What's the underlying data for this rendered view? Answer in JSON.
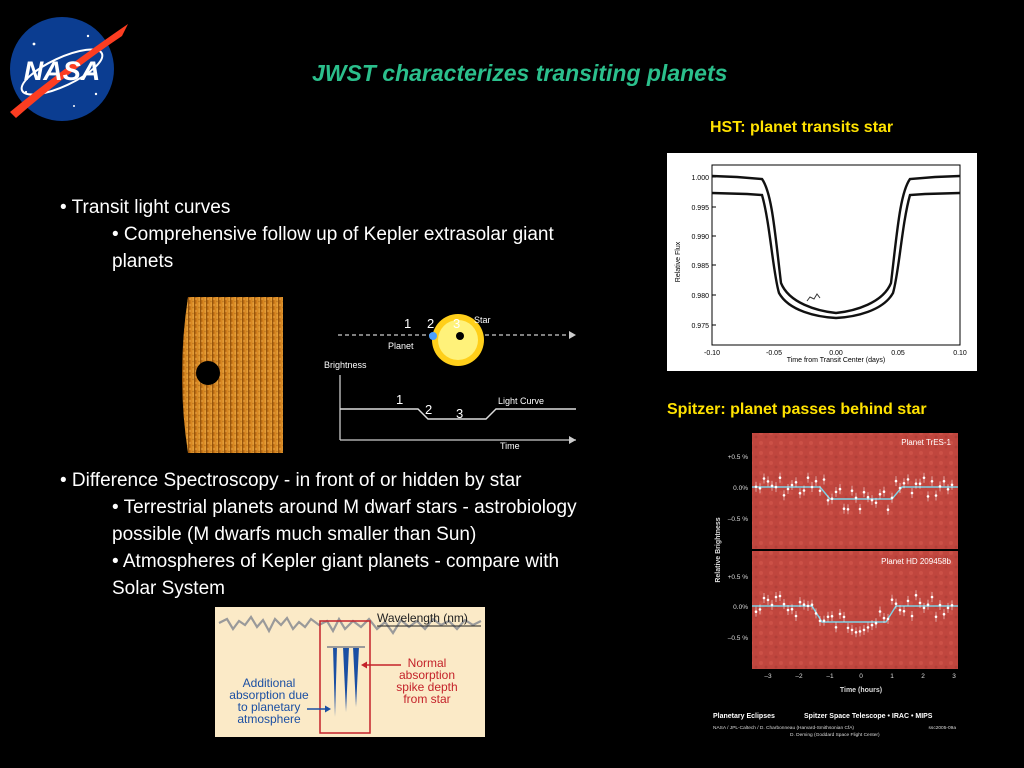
{
  "slide": {
    "title": "JWST characterizes transiting planets",
    "logo_text": "NASA",
    "bullets1": {
      "main": "• Transit light curves",
      "sub1": "• Comprehensive follow up of Kepler extrasolar giant",
      "sub1_cont": "planets"
    },
    "bullets2": {
      "main": "• Difference Spectroscopy - in front of or hidden by star",
      "sub1": "• Terrestrial planets around  M dwarf stars - astrobiology",
      "sub1_cont": "possible (M dwarfs much smaller than Sun)",
      "sub2": "• Atmospheres of Kepler giant planets - compare with",
      "sub2_cont": "Solar System"
    }
  },
  "hst": {
    "caption": "HST: planet transits star",
    "ylabel": "Relative Flux",
    "xlabel": "Time from Transit Center (days)",
    "yticks": [
      "1.000",
      "0.995",
      "0.990",
      "0.985",
      "0.980",
      "0.975"
    ],
    "xticks": [
      "-0.10",
      "-0.05",
      "0.00",
      "0.05",
      "0.10"
    ]
  },
  "transit_diagram": {
    "star_label": "Star",
    "planet_label": "Planet",
    "brightness_label": "Brightness",
    "time_label": "Time",
    "light_curve_label": "Light Curve",
    "pos1": "1",
    "pos2": "2",
    "pos3": "3"
  },
  "spitzer": {
    "caption": "Spitzer: planet passes behind star",
    "panel1_title": "Planet TrES-1",
    "panel2_title": "Planet HD 209458b",
    "ylabel": "Relative Brightness",
    "xlabel": "Time (hours)",
    "yticks": [
      "+0.5 %",
      "0.0%",
      "–0.5 %"
    ],
    "xticks": [
      "–3",
      "–2",
      "–1",
      "0",
      "1",
      "2",
      "3"
    ],
    "footer_title": "Planetary Eclipses",
    "footer_mission": "Spitzer Space Telescope • IRAC • MIPS",
    "footer_credit1": "NASA / JPL-Caltech / D. Charbonneau (Harvard-Smithsonian CfA)",
    "footer_credit2": "D. Deming (Goddard Space Flight Center)",
    "footer_id": "ssc2005-09a"
  },
  "spectrum": {
    "wavelength_label": "Wavelength (nm)",
    "left_label_1": "Additional",
    "left_label_2": "absorption due",
    "left_label_3": "to planetary",
    "left_label_4": "atmosphere",
    "right_label_1": "Normal",
    "right_label_2": "absorption",
    "right_label_3": "spike depth",
    "right_label_4": "from star"
  },
  "colors": {
    "title": "#2bbf8c",
    "caption": "#ffe200",
    "sun_orange": "#e08a1a",
    "spitzer_red": "#c0463e",
    "spectrum_red": "#c4222a",
    "spectrum_blue": "#1b4fa3"
  }
}
